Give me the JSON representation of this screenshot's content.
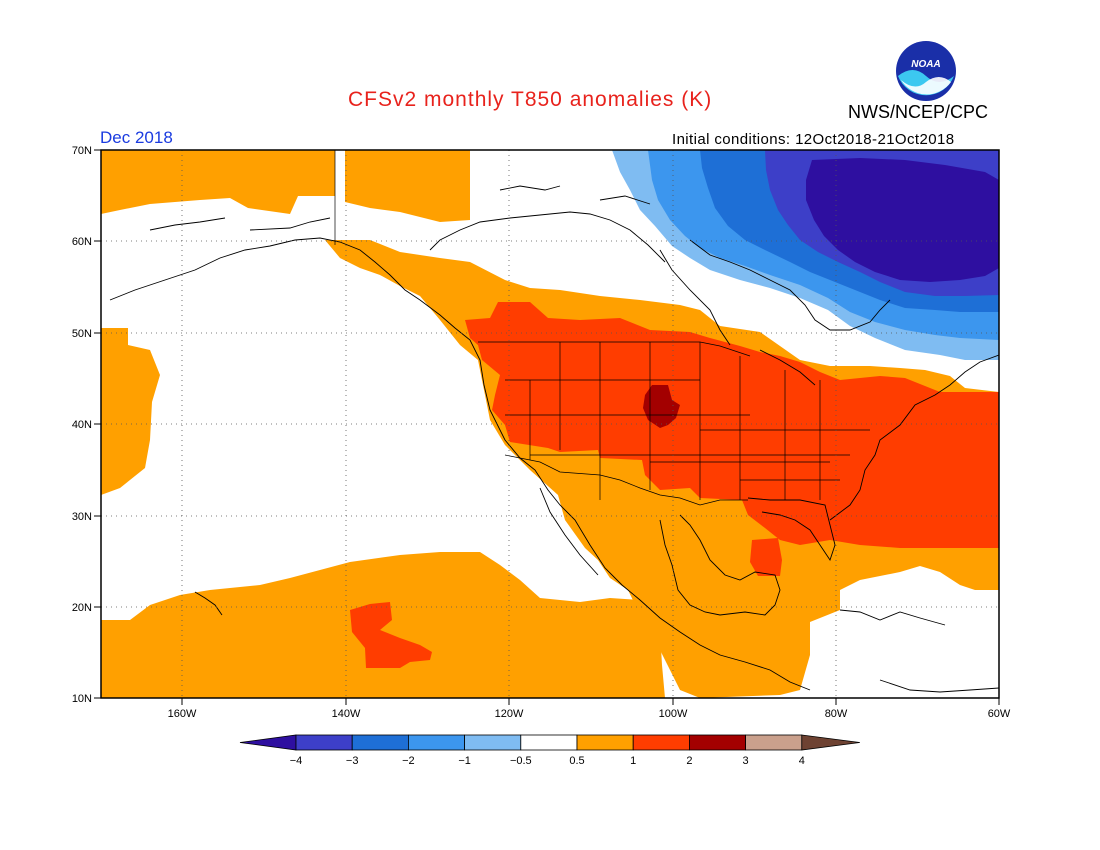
{
  "header": {
    "title": "CFSv2 monthly T850 anomalies (K)",
    "org": "NWS/NCEP/CPC",
    "month": "Dec 2018",
    "initial_conditions": "Initial conditions: 12Oct2018-21Oct2018",
    "logo_text": "NOAA"
  },
  "colors": {
    "title": "#e8221c",
    "month": "#1a3be0",
    "scale": [
      "#2e0fa0",
      "#3d3fc8",
      "#1e6fd6",
      "#3c96ee",
      "#7fbcf2",
      "#ffffff",
      "#ffa000",
      "#ff3d00",
      "#a30000",
      "#caa08c",
      "#6e4232"
    ]
  },
  "chart_data": {
    "type": "heatmap",
    "variable": "T850 anomaly",
    "units": "K",
    "region": {
      "lon": [
        -170,
        -60
      ],
      "lat": [
        10,
        70
      ]
    },
    "lat_ticks": [
      "10N",
      "20N",
      "30N",
      "40N",
      "50N",
      "60N",
      "70N"
    ],
    "lon_ticks": [
      "160W",
      "140W",
      "120W",
      "100W",
      "80W",
      "60W"
    ],
    "colorbar": {
      "labels": [
        "−4",
        "−3",
        "−2",
        "−1",
        "−0.5",
        "0.5",
        "1",
        "2",
        "3",
        "4"
      ],
      "bins": [
        {
          "range": "< -4",
          "color": "#2e0fa0"
        },
        {
          "range": "-4 to -3",
          "color": "#3d3fc8"
        },
        {
          "range": "-3 to -2",
          "color": "#1e6fd6"
        },
        {
          "range": "-2 to -1",
          "color": "#3c96ee"
        },
        {
          "range": "-1 to -0.5",
          "color": "#7fbcf2"
        },
        {
          "range": "-0.5 to 0.5",
          "color": "#ffffff"
        },
        {
          "range": "0.5 to 1",
          "color": "#ffa000"
        },
        {
          "range": "1 to 2",
          "color": "#ff3d00"
        },
        {
          "range": "2 to 3",
          "color": "#a30000"
        },
        {
          "range": "3 to 4",
          "color": "#caa08c"
        },
        {
          "range": "> 4",
          "color": "#6e4232"
        }
      ]
    },
    "regions": [
      {
        "area": "Northern Canada / Hudson Bay to Labrador",
        "anomaly": "-4 or colder"
      },
      {
        "area": "Eastern Canada fringe",
        "anomaly": "-3 to -1"
      },
      {
        "area": "Central and eastern United States",
        "anomaly": "1 to 2"
      },
      {
        "area": "Western Atlantic off US east coast",
        "anomaly": "1 to 2"
      },
      {
        "area": "Central Plains (Colorado/Nebraska)",
        "anomaly": "2 to 3"
      },
      {
        "area": "Western Canada, Alaska coast, Mexico",
        "anomaly": "0.5 to 1"
      },
      {
        "area": "Eastern Pacific (tropical and central)",
        "anomaly": "-0.5 to 0.5"
      },
      {
        "area": "Subtropical Pacific near Hawaii",
        "anomaly": "0.5 to 1"
      }
    ]
  }
}
